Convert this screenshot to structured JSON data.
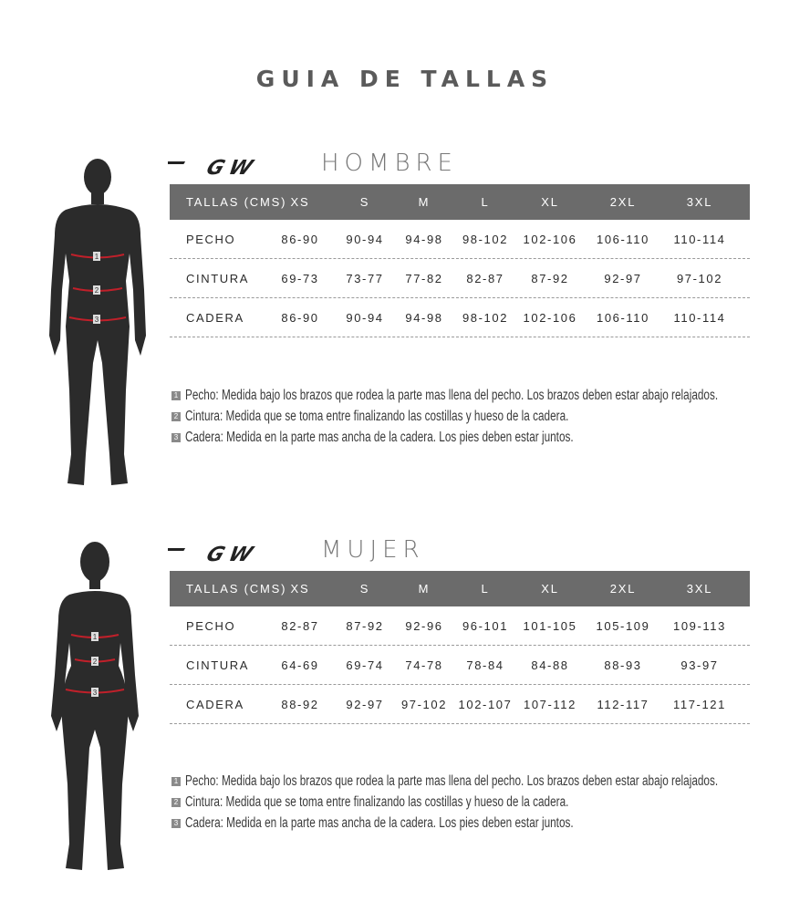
{
  "title": "GUIA DE TALLAS",
  "brand_logo": "GW",
  "colors": {
    "header_bg": "#6b6b6b",
    "silhouette": "#2b2b2b",
    "measure_arrow": "#c0202a"
  },
  "size_columns": [
    "XS",
    "S",
    "M",
    "L",
    "XL",
    "2XL",
    "3XL"
  ],
  "sections": [
    {
      "gender": "HOMBRE",
      "header_label": "TALLAS (CMS)",
      "rows": [
        {
          "label": "PECHO",
          "values": [
            "86-90",
            "90-94",
            "94-98",
            "98-102",
            "102-106",
            "106-110",
            "110-114"
          ]
        },
        {
          "label": "CINTURA",
          "values": [
            "69-73",
            "73-77",
            "77-82",
            "82-87",
            "87-92",
            "92-97",
            "97-102"
          ]
        },
        {
          "label": "CADERA",
          "values": [
            "86-90",
            "90-94",
            "94-98",
            "98-102",
            "102-106",
            "106-110",
            "110-114"
          ]
        }
      ],
      "notes": [
        {
          "num": "1",
          "text": "Pecho: Medida bajo los brazos que rodea la parte mas llena del pecho. Los brazos deben estar abajo relajados."
        },
        {
          "num": "2",
          "text": "Cintura: Medida que se toma entre finalizando las costillas y hueso de la cadera."
        },
        {
          "num": "3",
          "text": "Cadera: Medida en la parte mas ancha de la cadera. Los pies deben estar juntos."
        }
      ]
    },
    {
      "gender": "MUJER",
      "header_label": "TALLAS (CMS)",
      "rows": [
        {
          "label": "PECHO",
          "values": [
            "82-87",
            "87-92",
            "92-96",
            "96-101",
            "101-105",
            "105-109",
            "109-113"
          ]
        },
        {
          "label": "CINTURA",
          "values": [
            "64-69",
            "69-74",
            "74-78",
            "78-84",
            "84-88",
            "88-93",
            "93-97"
          ]
        },
        {
          "label": "CADERA",
          "values": [
            "88-92",
            "92-97",
            "97-102",
            "102-107",
            "107-112",
            "112-117",
            "117-121"
          ]
        }
      ],
      "notes": [
        {
          "num": "1",
          "text": "Pecho: Medida bajo los brazos que rodea la parte mas llena del pecho. Los brazos deben estar abajo relajados."
        },
        {
          "num": "2",
          "text": "Cintura: Medida que se toma entre finalizando las costillas y hueso de la cadera."
        },
        {
          "num": "3",
          "text": "Cadera: Medida en la parte mas ancha de la cadera. Los pies deben estar juntos."
        }
      ]
    }
  ]
}
